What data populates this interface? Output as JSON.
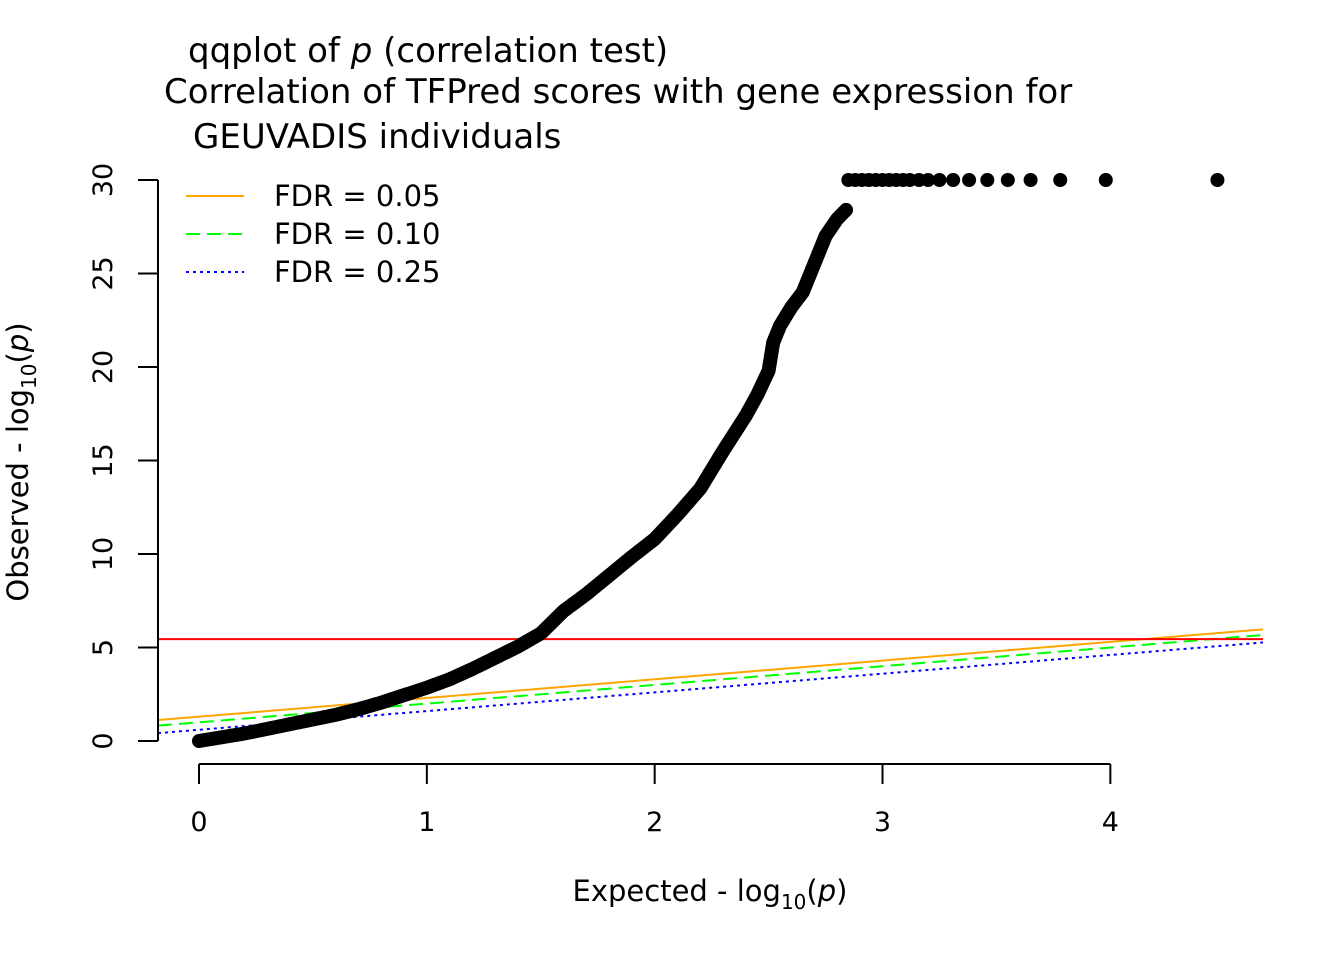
{
  "chart_data": {
    "type": "scatter",
    "title": {
      "line1_prefix": "qqplot of ",
      "line1_var": "p",
      "line1_suffix": " (correlation test)",
      "line2": "Correlation of TFPred scores with gene expression for",
      "line3": "GEUVADIS individuals"
    },
    "xlabel": {
      "prefix": "Expected - log",
      "sub": "10",
      "open": "(",
      "var": "p",
      "close": ")"
    },
    "ylabel": {
      "prefix": "Observed - log",
      "sub": "10",
      "open": "(",
      "var": "p",
      "close": ")"
    },
    "xlim": [
      -0.18,
      4.67
    ],
    "ylim": [
      0,
      30
    ],
    "x_ticks": [
      0,
      1,
      2,
      3,
      4
    ],
    "x_tick_labels": [
      "0",
      "1",
      "2",
      "3",
      "4"
    ],
    "y_ticks": [
      0,
      5,
      10,
      15,
      20,
      25,
      30
    ],
    "y_tick_labels": [
      "0",
      "5",
      "10",
      "15",
      "20",
      "25",
      "30"
    ],
    "grid": false,
    "legend_position": "top-left",
    "legend": [
      {
        "label": "FDR = 0.05",
        "color": "#FFA500",
        "dash": "solid"
      },
      {
        "label": "FDR = 0.10",
        "color": "#00FF00",
        "dash": "dashed"
      },
      {
        "label": "FDR = 0.25",
        "color": "#0000FF",
        "dash": "dotted"
      }
    ],
    "hline": {
      "y": 5.45,
      "color": "#FF0000"
    },
    "fdr_lines": [
      {
        "intercept": 1.3,
        "slope": 1.0,
        "color": "#FFA500",
        "dash": "solid"
      },
      {
        "intercept": 1.0,
        "slope": 1.0,
        "color": "#00FF00",
        "dash": "dashed"
      },
      {
        "intercept": 0.6,
        "slope": 1.0,
        "color": "#0000FF",
        "dash": "dotted"
      }
    ],
    "point_color": "#000000",
    "curve": {
      "x": [
        0.0,
        0.1,
        0.2,
        0.3,
        0.4,
        0.5,
        0.6,
        0.7,
        0.8,
        0.9,
        1.0,
        1.1,
        1.2,
        1.3,
        1.4,
        1.5,
        1.6,
        1.7,
        1.8,
        1.9,
        2.0,
        2.1,
        2.2,
        2.3,
        2.4,
        2.45,
        2.5,
        2.52,
        2.55,
        2.6,
        2.65,
        2.7,
        2.75,
        2.8,
        2.84
      ],
      "y": [
        0.0,
        0.2,
        0.4,
        0.65,
        0.9,
        1.15,
        1.4,
        1.7,
        2.05,
        2.45,
        2.85,
        3.3,
        3.85,
        4.45,
        5.05,
        5.75,
        6.95,
        7.85,
        8.85,
        9.85,
        10.8,
        12.1,
        13.5,
        15.5,
        17.4,
        18.5,
        19.8,
        21.3,
        22.2,
        23.2,
        24.0,
        25.5,
        27.0,
        27.9,
        28.4
      ]
    },
    "capped_points": {
      "x": [
        2.85,
        2.88,
        2.91,
        2.94,
        2.97,
        3.0,
        3.03,
        3.06,
        3.09,
        3.12,
        3.16,
        3.2,
        3.25,
        3.31,
        3.38,
        3.46,
        3.55,
        3.65,
        3.78,
        3.98,
        4.47
      ],
      "y": 30
    }
  }
}
